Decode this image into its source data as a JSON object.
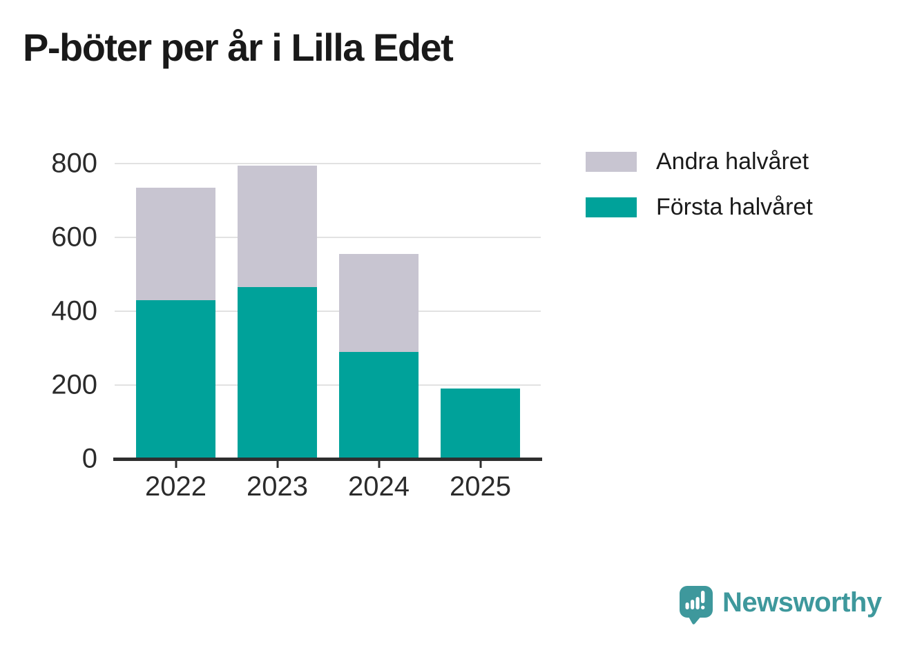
{
  "header": {
    "title": "P-böter per år i Lilla Edet"
  },
  "chart_data": {
    "type": "bar",
    "stacked": true,
    "title": "P-böter per år i Lilla Edet",
    "categories": [
      "2022",
      "2023",
      "2024",
      "2025"
    ],
    "series": [
      {
        "name": "Första halvåret",
        "color": "#00a29a",
        "values": [
          430,
          465,
          290,
          190
        ]
      },
      {
        "name": "Andra halvåret",
        "color": "#c8c5d1",
        "values": [
          305,
          330,
          265,
          0
        ]
      }
    ],
    "totals": [
      735,
      795,
      555,
      190
    ],
    "xlabel": "",
    "ylabel": "",
    "ylim": [
      0,
      800
    ],
    "yticks": [
      0,
      200,
      400,
      600,
      800
    ],
    "grid": "horizontal",
    "legend_position": "right-of-plot-top"
  },
  "legend": {
    "items": [
      {
        "label": "Andra halvåret",
        "color": "#c8c5d1"
      },
      {
        "label": "Första halvåret",
        "color": "#00a29a"
      }
    ]
  },
  "axis": {
    "line_color": "#2f2f2f",
    "grid_color": "#e2e2e2",
    "label_color": "#2b2b2b"
  },
  "footer": {
    "brand": "Newsworthy",
    "brand_color": "#3e989c"
  }
}
